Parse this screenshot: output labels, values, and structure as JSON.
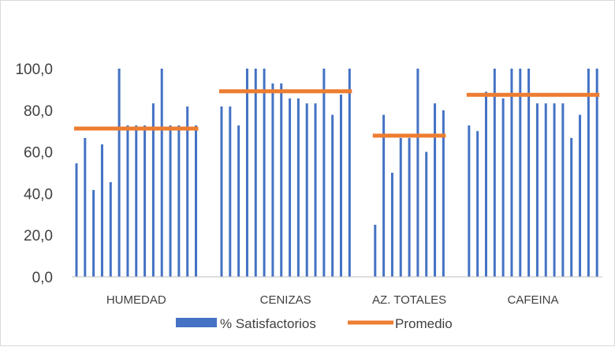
{
  "chart_data": {
    "type": "bar",
    "ylim": [
      0,
      100
    ],
    "yticks": [
      "0,0",
      "20,0",
      "40,0",
      "60,0",
      "80,0",
      "100,0"
    ],
    "ytick_values": [
      0,
      20,
      40,
      60,
      80,
      100
    ],
    "grid": false,
    "legend_position": "bottom",
    "colors": {
      "bars": "#4472C4",
      "average": "#ED7D31",
      "axis": "#bfbfbf",
      "text": "#404040"
    },
    "groups": [
      {
        "label": "HUMEDAD",
        "values": [
          54.5,
          66.7,
          41.7,
          63.6,
          45.5,
          100,
          72.7,
          72.7,
          72.7,
          83.3,
          100,
          72.7,
          72.7,
          81.8,
          72.7
        ],
        "average": 71.2
      },
      {
        "label": "CENIZAS",
        "values": [
          81.8,
          81.8,
          72.7,
          100,
          100,
          100,
          92.9,
          92.9,
          85.7,
          85.7,
          83.3,
          83.3,
          100,
          77.8,
          87.5,
          100
        ],
        "average": 89.1
      },
      {
        "label": "AZ. TOTALES",
        "values": [
          25,
          77.8,
          50,
          66.7,
          66.7,
          100,
          60,
          83.3,
          80
        ],
        "average": 67.8
      },
      {
        "label": "CAFEINA",
        "values": [
          72.7,
          70,
          88.9,
          100,
          85.7,
          100,
          100,
          100,
          83.3,
          83.3,
          83.3,
          83.3,
          66.7,
          77.8,
          100,
          100
        ],
        "average": 87.4
      }
    ],
    "legend": [
      {
        "name": "% Satisfactorios",
        "kind": "bar"
      },
      {
        "name": "Promedio",
        "kind": "line"
      }
    ]
  }
}
